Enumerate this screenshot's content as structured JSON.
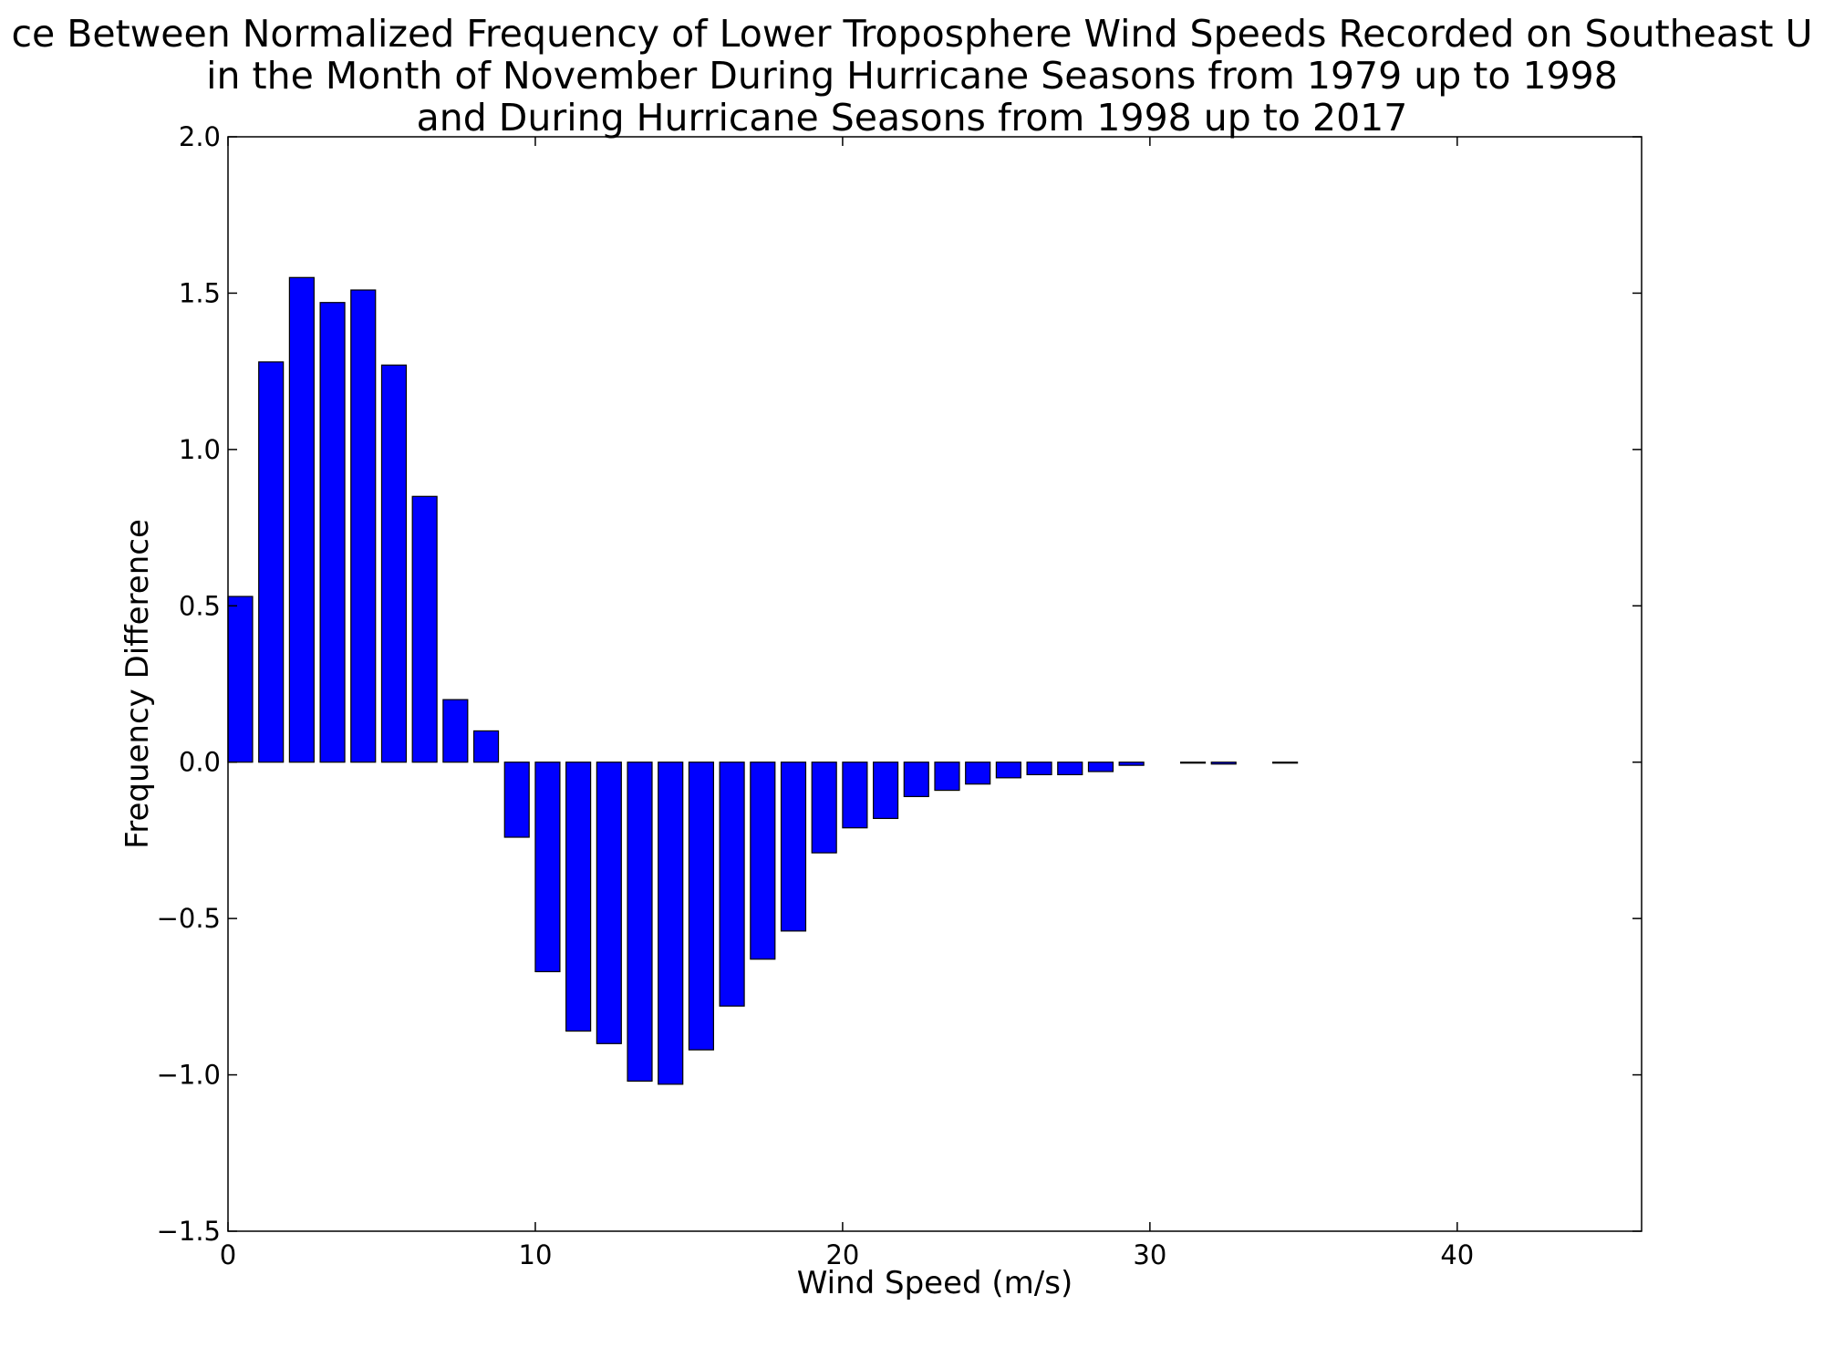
{
  "chart_data": {
    "type": "bar",
    "title_lines": [
      "ce Between Normalized Frequency of Lower Troposphere Wind Speeds Recorded on Southeast U",
      "in the Month of November During Hurricane Seasons from 1979 up to 1998",
      "and During Hurricane Seasons from 1998 up to 2017"
    ],
    "xlabel": "Wind Speed (m/s)",
    "ylabel": "Frequency Difference",
    "xlim": [
      0,
      46
    ],
    "ylim": [
      -1.5,
      2.0
    ],
    "xticks": [
      0,
      10,
      20,
      30,
      40
    ],
    "xtick_labels": [
      "0",
      "10",
      "20",
      "30",
      "40"
    ],
    "yticks": [
      -1.5,
      -1.0,
      -0.5,
      0.0,
      0.5,
      1.0,
      1.5,
      2.0
    ],
    "ytick_labels": [
      "−1.5",
      "−1.0",
      "−0.5",
      "0.0",
      "0.5",
      "1.0",
      "1.5",
      "2.0"
    ],
    "bar_width": 0.8,
    "x": [
      0,
      1,
      2,
      3,
      4,
      5,
      6,
      7,
      8,
      9,
      10,
      11,
      12,
      13,
      14,
      15,
      16,
      17,
      18,
      19,
      20,
      21,
      22,
      23,
      24,
      25,
      26,
      27,
      28,
      29,
      30,
      31,
      32,
      33,
      34,
      35,
      36,
      37,
      38,
      39,
      40,
      41,
      42,
      43,
      44
    ],
    "values": [
      0.53,
      1.28,
      1.55,
      1.47,
      1.51,
      1.27,
      0.85,
      0.2,
      0.1,
      -0.24,
      -0.67,
      -0.86,
      -0.9,
      -1.02,
      -1.03,
      -0.92,
      -0.78,
      -0.63,
      -0.54,
      -0.29,
      -0.21,
      -0.18,
      -0.11,
      -0.09,
      -0.07,
      -0.05,
      -0.04,
      -0.04,
      -0.03,
      -0.01,
      0.0,
      -0.003,
      -0.006,
      0.0,
      -0.003,
      0.0,
      0.0,
      0.0,
      0.0,
      0.0,
      0.0,
      0.0,
      0.0,
      0.0,
      0.0
    ],
    "bar_color": "#0000ff",
    "edge_color": "#000000",
    "grid": false,
    "legend": "none"
  }
}
